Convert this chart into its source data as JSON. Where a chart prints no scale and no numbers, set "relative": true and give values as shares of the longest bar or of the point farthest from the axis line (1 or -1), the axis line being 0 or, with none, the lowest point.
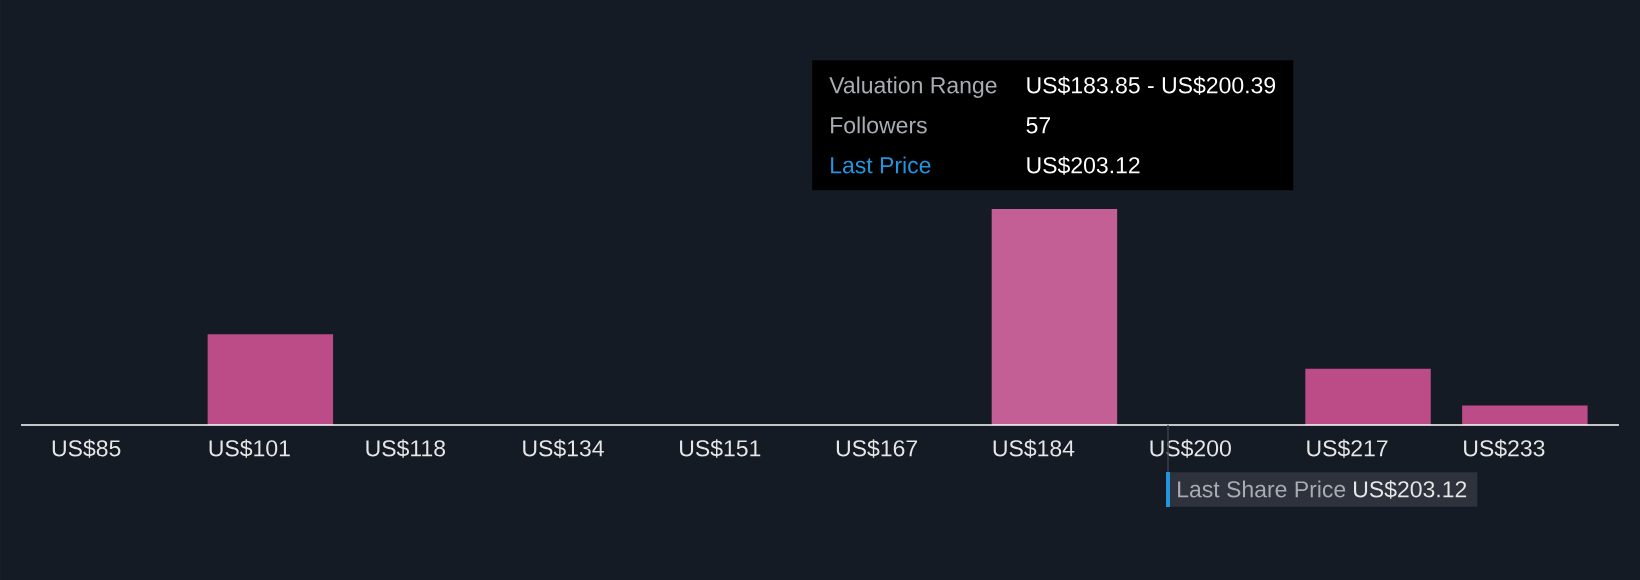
{
  "chart_data": {
    "type": "bar",
    "relative": true,
    "categories": [
      "US$85",
      "US$101",
      "US$118",
      "US$134",
      "US$151",
      "US$167",
      "US$184",
      "US$200",
      "US$217",
      "US$233"
    ],
    "values": [
      0,
      0.42,
      0,
      0,
      0,
      0,
      1,
      0,
      0.26,
      0.09
    ],
    "colors": [
      "#bc4c88",
      "#bc4c88",
      "#bc4c88",
      "#bc4c88",
      "#bc4c88",
      "#bc4c88",
      "#c45f95",
      "#bc4c88",
      "#bc4c88",
      "#bc4c88"
    ],
    "annotations": [
      "Valuation Range",
      "US$183.85 - US$200.39",
      "Followers",
      "57",
      "Last Price",
      "US$203.12",
      "Last Share Price",
      "US$203.12"
    ]
  }
}
